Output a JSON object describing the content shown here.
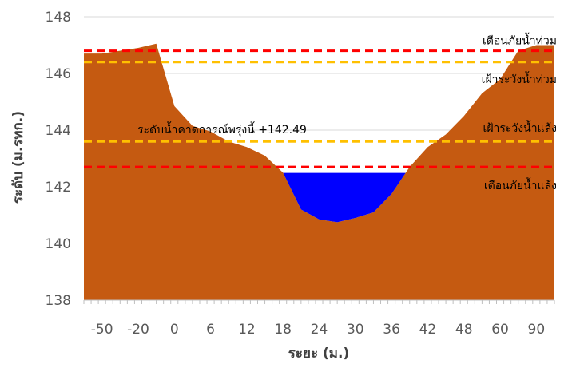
{
  "chart_data": {
    "type": "area",
    "xlabel": "ระยะ (ม.)",
    "ylabel": "ระดับ (ม.รทก.)",
    "ylim": [
      138,
      148
    ],
    "yticks": [
      138,
      140,
      142,
      144,
      146,
      148
    ],
    "xtick_labels": [
      "-50",
      "-20",
      "0",
      "6",
      "12",
      "18",
      "24",
      "30",
      "36",
      "42",
      "48",
      "60",
      "90"
    ],
    "grid": "horizontal",
    "colors": {
      "ground": "#C55A11",
      "water": "#0000FF",
      "danger_line": "#FF0000",
      "watch_line": "#FFC000",
      "grid": "#D9D9D9",
      "axis": "#BFBFBF"
    },
    "ground_profile": {
      "x_index": [
        0,
        0.5,
        1,
        1.5,
        2,
        2.5,
        3,
        3.5,
        4,
        4.5,
        5,
        5.5,
        6,
        6.5,
        7,
        7.5,
        8,
        8.5,
        9,
        9.5,
        10,
        10.5,
        11,
        11.5,
        12
      ],
      "elevation": [
        146.7,
        146.8,
        146.9,
        147.05,
        144.85,
        144.15,
        143.95,
        143.6,
        143.4,
        143.1,
        142.5,
        141.2,
        140.85,
        140.75,
        140.9,
        141.1,
        141.75,
        142.7,
        143.4,
        143.85,
        144.5,
        145.3,
        145.8,
        146.8,
        147.0
      ]
    },
    "water": {
      "level": 142.49,
      "label": "ระดับน้ำคาดการณ์พรุ่งนี้ +142.49"
    },
    "reference_lines": [
      {
        "name": "เตือนภัยน้ำท่วม",
        "value": 146.8,
        "kind": "danger"
      },
      {
        "name": "เฝ้าระวังน้ำท่วม",
        "value": 146.4,
        "kind": "watch"
      },
      {
        "name": "เฝ้าระวังน้ำแล้ง",
        "value": 143.6,
        "kind": "watch"
      },
      {
        "name": "เตือนภัยน้ำแล้ง",
        "value": 142.7,
        "kind": "danger"
      }
    ]
  }
}
